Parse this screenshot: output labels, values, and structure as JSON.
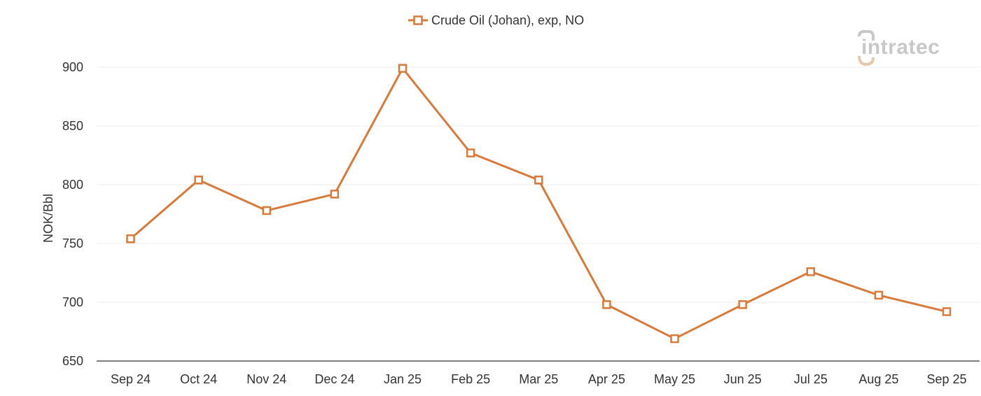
{
  "colors": {
    "series": "#d9793a",
    "grid": "#ececec",
    "axis": "#555555",
    "logo_gray": "#c8c8c8",
    "logo_accent": "#e6c9ad"
  },
  "logo": {
    "text": "intratec"
  },
  "chart_data": {
    "type": "line",
    "title": "",
    "xlabel": "",
    "ylabel": "NOK/Bbl",
    "ylim": [
      650,
      900
    ],
    "yticks": [
      650,
      700,
      750,
      800,
      850,
      900
    ],
    "grid": true,
    "legend_position": "top-center",
    "categories": [
      "Sep 24",
      "Oct 24",
      "Nov 24",
      "Dec 24",
      "Jan 25",
      "Feb 25",
      "Mar 25",
      "Apr 25",
      "May 25",
      "Jun 25",
      "Jul 25",
      "Aug 25",
      "Sep 25"
    ],
    "series": [
      {
        "name": "Crude Oil (Johan), exp, NO",
        "marker": "square-open",
        "values": [
          754,
          804,
          778,
          792,
          899,
          827,
          804,
          698,
          669,
          698,
          726,
          706,
          692
        ]
      }
    ]
  }
}
